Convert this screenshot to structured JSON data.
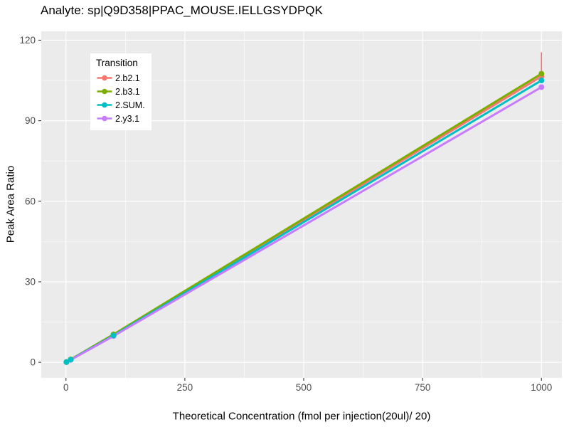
{
  "title": "Analyte: sp|Q9D358|PPAC_MOUSE.IELLGSYDPQK",
  "axes": {
    "x_label": "Theoretical Concentration (fmol per injection(20ul)/ 20)",
    "y_label": "Peak Area Ratio"
  },
  "legend": {
    "title": "Transition",
    "position": "inside-top-left",
    "items": [
      {
        "label": "2.b2.1",
        "color": "#F8766D"
      },
      {
        "label": "2.b3.1",
        "color": "#7CAE00"
      },
      {
        "label": "2.SUM.",
        "color": "#00BFC4"
      },
      {
        "label": "2.y3.1",
        "color": "#C77CFF"
      }
    ]
  },
  "colors": {
    "panel_bg": "#EBEBEB",
    "grid": "#FFFFFF",
    "tick_mark": "#333333",
    "tick_label": "#4D4D4D",
    "title_text": "#000000"
  },
  "chart_data": {
    "type": "line",
    "title": "Analyte: sp|Q9D358|PPAC_MOUSE.IELLGSYDPQK",
    "xlabel": "Theoretical Concentration (fmol per injection(20ul)/ 20)",
    "ylabel": "Peak Area Ratio",
    "x": [
      1,
      10,
      100,
      1000
    ],
    "series": [
      {
        "name": "2.b2.1",
        "color": "#F8766D",
        "values": [
          0.1,
          1.0,
          10.2,
          106.5
        ],
        "error_bar": {
          "x": 1000,
          "ymin": 104,
          "ymax": 115.5
        }
      },
      {
        "name": "2.b3.1",
        "color": "#7CAE00",
        "values": [
          0.1,
          1.1,
          10.4,
          107.5
        ]
      },
      {
        "name": "2.SUM.",
        "color": "#00BFC4",
        "values": [
          0.1,
          1.0,
          10.0,
          105.0
        ]
      },
      {
        "name": "2.y3.1",
        "color": "#C77CFF",
        "values": [
          0.1,
          0.9,
          9.8,
          102.5
        ]
      }
    ],
    "x_ticks": [
      0,
      250,
      500,
      750,
      1000
    ],
    "y_ticks": [
      0,
      30,
      60,
      90,
      120
    ],
    "x_minor_gridlines": [
      125,
      375,
      625,
      875
    ],
    "y_minor_gridlines": [
      15,
      45,
      75,
      105
    ],
    "xlim": [
      -52,
      1043
    ],
    "ylim": [
      -5.8,
      123.3
    ],
    "grid": true,
    "legend_position": "inside-top-left"
  }
}
